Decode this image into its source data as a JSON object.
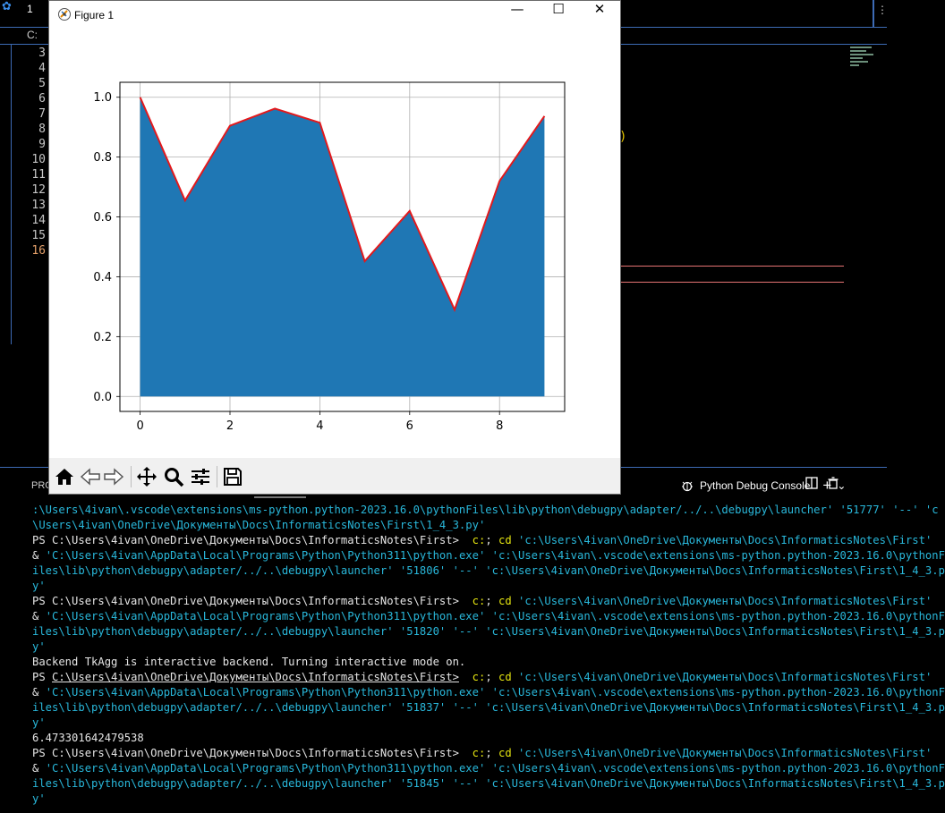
{
  "vscode": {
    "tab_label": "1",
    "breadcrumb": "C:",
    "line_numbers": [
      "3",
      "4",
      "5",
      "6",
      "7",
      "8",
      "9",
      "10",
      "11",
      "12",
      "13",
      "14",
      "15",
      "16"
    ],
    "current_line": "16",
    "bracket_char": ")"
  },
  "panel": {
    "problems_label": "PRO",
    "debug_console_label": "Python Debug Console",
    "add_icon": "+",
    "chevron_icon": "⌄"
  },
  "terminal": {
    "lines": [
      [
        {
          "t": ":\\Users\\4ivan\\.vscode\\extensions\\ms-python.python-2023.16.0\\pythonFiles\\lib\\python\\debugpy\\adapter/../..\\debugpy\\launcher' '51777' '--' 'c",
          "c": "cyan"
        }
      ],
      [
        {
          "t": "\\Users\\4ivan\\OneDrive\\Документы\\Docs\\InformaticsNotes\\First\\1_4_3.py'",
          "c": "cyan"
        }
      ],
      [
        {
          "t": "PS C:\\Users\\4ivan\\OneDrive\\Документы\\Docs\\InformaticsNotes\\First>  ",
          "c": "plain"
        },
        {
          "t": "c:",
          "c": "yellow"
        },
        {
          "t": "; ",
          "c": "plain"
        },
        {
          "t": "cd",
          "c": "yellow"
        },
        {
          "t": " 'c:\\Users\\4ivan\\OneDrive\\Документы\\Docs\\InformaticsNotes\\First'",
          "c": "cyan"
        }
      ],
      [
        {
          "t": "& ",
          "c": "plain"
        },
        {
          "t": "'C:\\Users\\4ivan\\AppData\\Local\\Programs\\Python\\Python311\\python.exe' 'c:\\Users\\4ivan\\.vscode\\extensions\\ms-python.python-2023.16.0\\pythonF",
          "c": "cyan"
        }
      ],
      [
        {
          "t": "iles\\lib\\python\\debugpy\\adapter/../..\\debugpy\\launcher' '51806' '--' 'c:\\Users\\4ivan\\OneDrive\\Документы\\Docs\\InformaticsNotes\\First\\1_4_3.p",
          "c": "cyan"
        }
      ],
      [
        {
          "t": "y'",
          "c": "cyan"
        }
      ],
      [
        {
          "t": "PS C:\\Users\\4ivan\\OneDrive\\Документы\\Docs\\InformaticsNotes\\First>  ",
          "c": "plain"
        },
        {
          "t": "c:",
          "c": "yellow"
        },
        {
          "t": "; ",
          "c": "plain"
        },
        {
          "t": "cd",
          "c": "yellow"
        },
        {
          "t": " 'c:\\Users\\4ivan\\OneDrive\\Документы\\Docs\\InformaticsNotes\\First'",
          "c": "cyan"
        }
      ],
      [
        {
          "t": "& ",
          "c": "plain"
        },
        {
          "t": "'C:\\Users\\4ivan\\AppData\\Local\\Programs\\Python\\Python311\\python.exe' 'c:\\Users\\4ivan\\.vscode\\extensions\\ms-python.python-2023.16.0\\pythonF",
          "c": "cyan"
        }
      ],
      [
        {
          "t": "iles\\lib\\python\\debugpy\\adapter/../..\\debugpy\\launcher' '51820' '--' 'c:\\Users\\4ivan\\OneDrive\\Документы\\Docs\\InformaticsNotes\\First\\1_4_3.p",
          "c": "cyan"
        }
      ],
      [
        {
          "t": "y'",
          "c": "cyan"
        }
      ],
      [
        {
          "t": "Backend TkAgg is interactive backend. Turning interactive mode on.",
          "c": "plain"
        }
      ],
      [
        {
          "t": "PS ",
          "c": "plain"
        },
        {
          "t": "C:\\Users\\4ivan\\OneDrive\\Документы\\Docs\\InformaticsNotes\\First>",
          "c": "plain",
          "u": true
        },
        {
          "t": "  ",
          "c": "plain"
        },
        {
          "t": "c:",
          "c": "yellow"
        },
        {
          "t": "; ",
          "c": "plain"
        },
        {
          "t": "cd",
          "c": "yellow"
        },
        {
          "t": " 'c:\\Users\\4ivan\\OneDrive\\Документы\\Docs\\InformaticsNotes\\First'",
          "c": "cyan"
        }
      ],
      [
        {
          "t": "& ",
          "c": "plain"
        },
        {
          "t": "'C:\\Users\\4ivan\\AppData\\Local\\Programs\\Python\\Python311\\python.exe' 'c:\\Users\\4ivan\\.vscode\\extensions\\ms-python.python-2023.16.0\\pythonF",
          "c": "cyan"
        }
      ],
      [
        {
          "t": "iles\\lib\\python\\debugpy\\adapter/../..\\debugpy\\launcher' '51837' '--' 'c:\\Users\\4ivan\\OneDrive\\Документы\\Docs\\InformaticsNotes\\First\\1_4_3.p",
          "c": "cyan"
        }
      ],
      [
        {
          "t": "y'",
          "c": "cyan"
        }
      ],
      [
        {
          "t": "6.473301642479538",
          "c": "plain"
        }
      ],
      [
        {
          "t": "PS C:\\Users\\4ivan\\OneDrive\\Документы\\Docs\\InformaticsNotes\\First>  ",
          "c": "plain"
        },
        {
          "t": "c:",
          "c": "yellow"
        },
        {
          "t": "; ",
          "c": "plain"
        },
        {
          "t": "cd",
          "c": "yellow"
        },
        {
          "t": " 'c:\\Users\\4ivan\\OneDrive\\Документы\\Docs\\InformaticsNotes\\First'",
          "c": "cyan"
        }
      ],
      [
        {
          "t": "& ",
          "c": "plain"
        },
        {
          "t": "'C:\\Users\\4ivan\\AppData\\Local\\Programs\\Python\\Python311\\python.exe' 'c:\\Users\\4ivan\\.vscode\\extensions\\ms-python.python-2023.16.0\\pythonF",
          "c": "cyan"
        }
      ],
      [
        {
          "t": "iles\\lib\\python\\debugpy\\adapter/../..\\debugpy\\launcher' '51845' '--' 'c:\\Users\\4ivan\\OneDrive\\Документы\\Docs\\InformaticsNotes\\First\\1_4_3.p",
          "c": "cyan"
        }
      ],
      [
        {
          "t": "y'",
          "c": "cyan"
        }
      ]
    ]
  },
  "figure": {
    "title": "Figure 1",
    "minimize": "—",
    "maximize": "☐",
    "close": "✕",
    "toolbar_icons": [
      "home-icon",
      "back-icon",
      "forward-icon",
      "pan-icon",
      "zoom-icon",
      "configure-icon",
      "save-icon"
    ]
  },
  "chart_data": {
    "type": "area",
    "title": "",
    "xlabel": "",
    "ylabel": "",
    "x": [
      0,
      1,
      2,
      3,
      4,
      5,
      6,
      7,
      8,
      9
    ],
    "series": [
      {
        "values": [
          1.0,
          0.655,
          0.905,
          0.962,
          0.915,
          0.452,
          0.62,
          0.29,
          0.72,
          0.937
        ]
      }
    ],
    "xlim": [
      -0.45,
      9.45
    ],
    "ylim": [
      -0.05,
      1.05
    ],
    "xticks": [
      "0",
      "2",
      "4",
      "6",
      "8"
    ],
    "yticks": [
      "0.0",
      "0.2",
      "0.4",
      "0.6",
      "0.8",
      "1.0"
    ],
    "grid": true,
    "fill_color": "#1f77b4",
    "line_color": "#e3191c"
  }
}
